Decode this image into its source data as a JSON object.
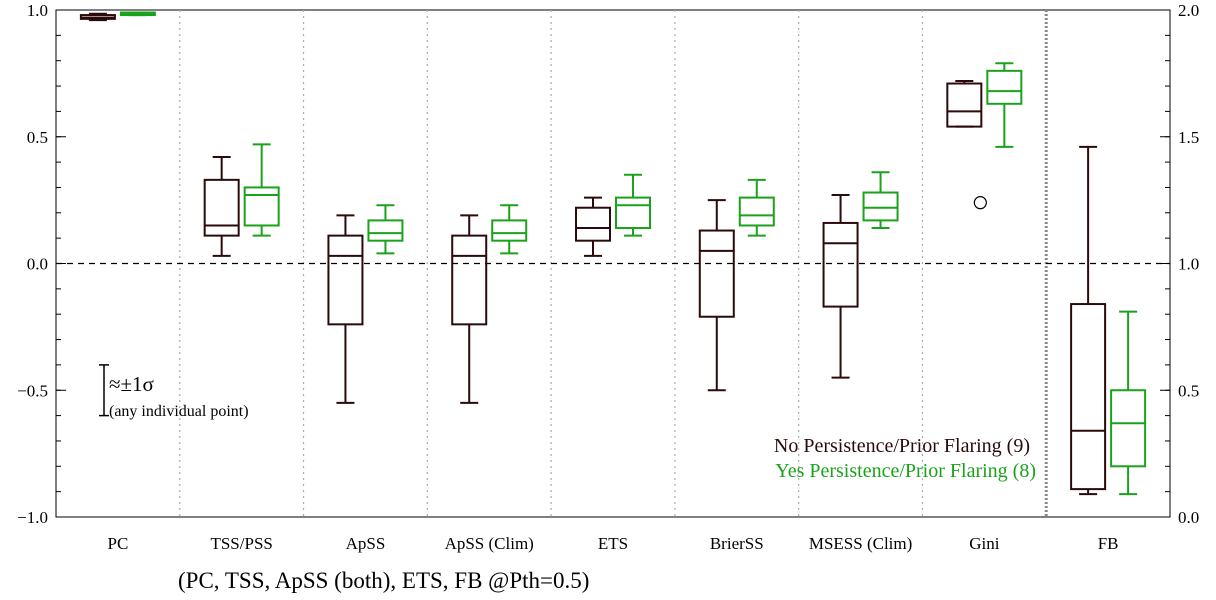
{
  "chart_data": {
    "type": "boxplot",
    "categories": [
      "PC",
      "TSS/PSS",
      "ApSS",
      "ApSS (Clim)",
      "ETS",
      "BrierSS",
      "MSESS (Clim)",
      "Gini",
      "FB"
    ],
    "ylim": [
      -1.0,
      1.0
    ],
    "y2lim": [
      0.0,
      2.0
    ],
    "yticks": [
      "1.0",
      "0.5",
      "0.0",
      "−0.5",
      "−1.0"
    ],
    "y2ticks": [
      "2.0",
      "1.5",
      "1.0",
      "0.5",
      "0.0"
    ],
    "y2_applies_to": "FB",
    "zero_line": true,
    "colors": {
      "no": "#2a0a0a",
      "yes": "#1aa31a"
    },
    "series": [
      {
        "name": "No Persistence/Prior Flaring (9)",
        "key": "no",
        "boxes": [
          {
            "min": 0.96,
            "q1": 0.965,
            "median": 0.97,
            "q3": 0.98,
            "max": 0.985
          },
          {
            "min": 0.03,
            "q1": 0.11,
            "median": 0.15,
            "q3": 0.33,
            "max": 0.42
          },
          {
            "min": -0.55,
            "q1": -0.24,
            "median": 0.03,
            "q3": 0.11,
            "max": 0.19
          },
          {
            "min": -0.55,
            "q1": -0.24,
            "median": 0.03,
            "q3": 0.11,
            "max": 0.19
          },
          {
            "min": 0.03,
            "q1": 0.09,
            "median": 0.14,
            "q3": 0.22,
            "max": 0.26
          },
          {
            "min": -0.5,
            "q1": -0.21,
            "median": 0.05,
            "q3": 0.13,
            "max": 0.25
          },
          {
            "min": -0.45,
            "q1": -0.17,
            "median": 0.08,
            "q3": 0.16,
            "max": 0.27
          },
          {
            "min": 0.54,
            "q1": 0.54,
            "median": 0.6,
            "q3": 0.71,
            "max": 0.72,
            "outliers": [
              0.24
            ]
          },
          {
            "min": 0.09,
            "q1": 0.11,
            "median": 0.34,
            "q3": 0.84,
            "max": 1.46
          }
        ]
      },
      {
        "name": "Yes Persistence/Prior Flaring (8)",
        "key": "yes",
        "boxes": [
          {
            "min": 0.98,
            "q1": 0.98,
            "median": 0.985,
            "q3": 0.99,
            "max": 0.99
          },
          {
            "min": 0.11,
            "q1": 0.15,
            "median": 0.27,
            "q3": 0.3,
            "max": 0.47
          },
          {
            "min": 0.04,
            "q1": 0.09,
            "median": 0.12,
            "q3": 0.17,
            "max": 0.23
          },
          {
            "min": 0.04,
            "q1": 0.09,
            "median": 0.12,
            "q3": 0.17,
            "max": 0.23
          },
          {
            "min": 0.11,
            "q1": 0.14,
            "median": 0.23,
            "q3": 0.26,
            "max": 0.35
          },
          {
            "min": 0.11,
            "q1": 0.15,
            "median": 0.19,
            "q3": 0.26,
            "max": 0.33
          },
          {
            "min": 0.14,
            "q1": 0.17,
            "median": 0.22,
            "q3": 0.28,
            "max": 0.36
          },
          {
            "min": 0.46,
            "q1": 0.63,
            "median": 0.68,
            "q3": 0.76,
            "max": 0.79
          },
          {
            "min": 0.09,
            "q1": 0.2,
            "median": 0.37,
            "q3": 0.5,
            "max": 0.81
          }
        ]
      }
    ],
    "legend": {
      "position": "bottom-right",
      "entries": [
        {
          "label": "No Persistence/Prior Flaring (9)",
          "color_key": "no"
        },
        {
          "label": "Yes Persistence/Prior Flaring (8)",
          "color_key": "yes"
        }
      ]
    },
    "annotations": {
      "sigma_label": "≈±1σ",
      "sigma_sub": "(any individual point)",
      "sigma_value": 0.1
    },
    "footnote": "(PC, TSS, ApSS (both), ETS, FB @Pth=0.5)"
  }
}
